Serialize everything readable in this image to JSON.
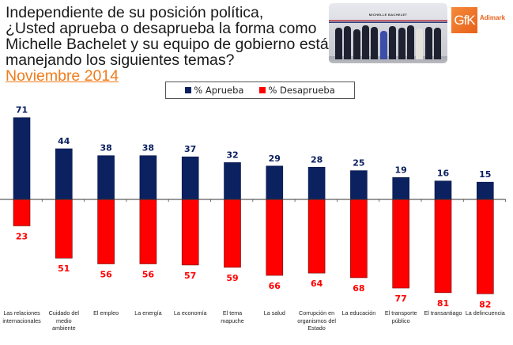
{
  "header": {
    "question_lines": [
      "Independiente de su posición política,",
      "¿Usted aprueba o desaprueba la forma como",
      "Michelle Bachelet y su equipo de gobierno están",
      "manejando los siguientes temas?"
    ],
    "date": "Noviembre 2014",
    "photo_caption": "MICHELLE BACHELET",
    "logo_text": "GfK",
    "brand_text": "Adimark"
  },
  "colors": {
    "aprueba": "#0b2160",
    "desaprueba": "#ff0000",
    "date": "#f07c1c"
  },
  "chart_data": {
    "type": "bar",
    "title": "¿Usted aprueba o desaprueba la forma como Michelle Bachelet y su equipo de gobierno están manejando los siguientes temas?",
    "subtitle": "Noviembre 2014",
    "xlabel": "",
    "ylabel": "",
    "legend_position": "top-center",
    "grid": false,
    "ylim": [
      -85,
      75
    ],
    "categories": [
      "Las relaciones internacionales",
      "Cuidado del medio ambiente",
      "El empleo",
      "La energía",
      "La economía",
      "El tema mapuche",
      "La salud",
      "Corrupción en organismos del Estado",
      "La educación",
      "El transporte público",
      "El transantiago",
      "La delincuencia"
    ],
    "category_lines": [
      [
        "Las relaciones",
        "internacionales"
      ],
      [
        "Cuidado del",
        "medio",
        "ambiente"
      ],
      [
        "El empleo"
      ],
      [
        "La energía"
      ],
      [
        "La economía"
      ],
      [
        "El tema",
        "mapuche"
      ],
      [
        "La salud"
      ],
      [
        "Corrupción en",
        "organismos del",
        "Estado"
      ],
      [
        "La educación"
      ],
      [
        "El transporte",
        "público"
      ],
      [
        "El transantiago"
      ],
      [
        "La delincuencia"
      ]
    ],
    "series": [
      {
        "name": "% Aprueba",
        "values": [
          71,
          44,
          38,
          38,
          37,
          32,
          29,
          28,
          25,
          19,
          16,
          15
        ]
      },
      {
        "name": "% Desaprueba",
        "values": [
          23,
          51,
          56,
          56,
          57,
          59,
          66,
          64,
          68,
          77,
          81,
          82
        ]
      }
    ]
  }
}
